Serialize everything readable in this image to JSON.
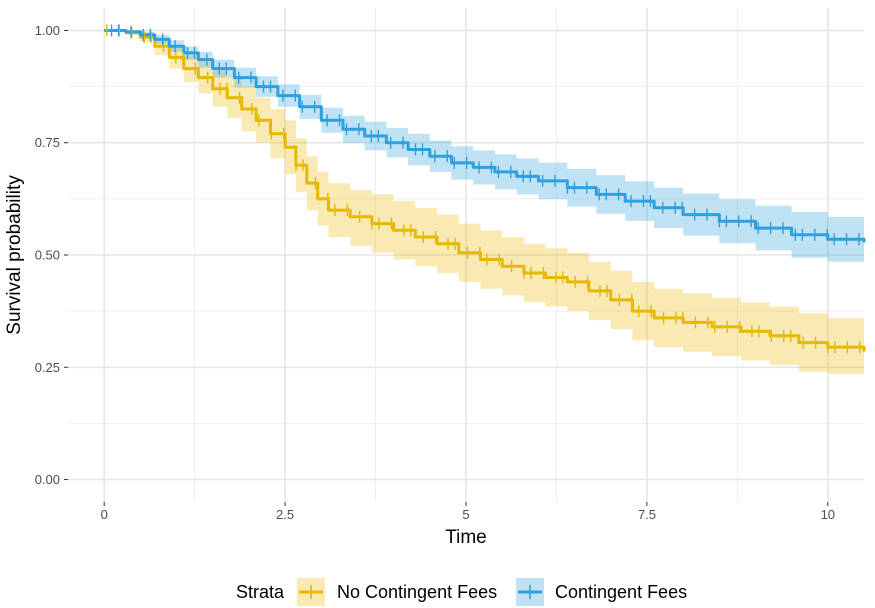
{
  "chart_data": {
    "type": "line",
    "subtype": "kaplan-meier survival with confidence bands",
    "xlabel": "Time",
    "ylabel": "Survival probability",
    "xlim": [
      -0.5,
      10.5
    ],
    "ylim": [
      -0.05,
      1.05
    ],
    "x_ticks": [
      0,
      2.5,
      5,
      7.5,
      10
    ],
    "x_tick_labels": [
      "0",
      "2.5",
      "5",
      "7.5",
      "10"
    ],
    "y_ticks": [
      0,
      0.25,
      0.5,
      0.75,
      1.0
    ],
    "y_tick_labels": [
      "0.00",
      "0.25",
      "0.50",
      "0.75",
      "1.00"
    ],
    "grid": true,
    "legend_title": "Strata",
    "legend_position": "bottom",
    "series": [
      {
        "name": "No Contingent Fees",
        "color": "#E7B800",
        "points": [
          [
            0,
            1.0
          ],
          [
            0.3,
            0.995
          ],
          [
            0.5,
            0.985
          ],
          [
            0.7,
            0.965
          ],
          [
            0.9,
            0.94
          ],
          [
            1.1,
            0.915
          ],
          [
            1.3,
            0.895
          ],
          [
            1.5,
            0.87
          ],
          [
            1.7,
            0.85
          ],
          [
            1.9,
            0.825
          ],
          [
            2.1,
            0.8
          ],
          [
            2.3,
            0.77
          ],
          [
            2.5,
            0.74
          ],
          [
            2.65,
            0.7
          ],
          [
            2.8,
            0.66
          ],
          [
            2.95,
            0.625
          ],
          [
            3.1,
            0.6
          ],
          [
            3.4,
            0.585
          ],
          [
            3.7,
            0.57
          ],
          [
            4.0,
            0.555
          ],
          [
            4.3,
            0.54
          ],
          [
            4.6,
            0.525
          ],
          [
            4.9,
            0.505
          ],
          [
            5.2,
            0.49
          ],
          [
            5.5,
            0.475
          ],
          [
            5.8,
            0.46
          ],
          [
            6.1,
            0.45
          ],
          [
            6.4,
            0.44
          ],
          [
            6.7,
            0.42
          ],
          [
            7.0,
            0.4
          ],
          [
            7.3,
            0.375
          ],
          [
            7.6,
            0.36
          ],
          [
            8.0,
            0.35
          ],
          [
            8.4,
            0.34
          ],
          [
            8.8,
            0.33
          ],
          [
            9.2,
            0.32
          ],
          [
            9.6,
            0.305
          ],
          [
            10.0,
            0.295
          ],
          [
            10.5,
            0.285
          ]
        ],
        "lower": [
          [
            0,
            1.0
          ],
          [
            0.3,
            0.99
          ],
          [
            0.5,
            0.975
          ],
          [
            0.7,
            0.945
          ],
          [
            0.9,
            0.915
          ],
          [
            1.1,
            0.885
          ],
          [
            1.3,
            0.86
          ],
          [
            1.5,
            0.83
          ],
          [
            1.7,
            0.805
          ],
          [
            1.9,
            0.775
          ],
          [
            2.1,
            0.75
          ],
          [
            2.3,
            0.715
          ],
          [
            2.5,
            0.68
          ],
          [
            2.65,
            0.64
          ],
          [
            2.8,
            0.6
          ],
          [
            2.95,
            0.565
          ],
          [
            3.1,
            0.54
          ],
          [
            3.4,
            0.52
          ],
          [
            3.7,
            0.505
          ],
          [
            4.0,
            0.49
          ],
          [
            4.3,
            0.475
          ],
          [
            4.6,
            0.46
          ],
          [
            4.9,
            0.44
          ],
          [
            5.2,
            0.425
          ],
          [
            5.5,
            0.41
          ],
          [
            5.8,
            0.395
          ],
          [
            6.1,
            0.385
          ],
          [
            6.4,
            0.375
          ],
          [
            6.7,
            0.355
          ],
          [
            7.0,
            0.335
          ],
          [
            7.3,
            0.31
          ],
          [
            7.6,
            0.295
          ],
          [
            8.0,
            0.285
          ],
          [
            8.4,
            0.275
          ],
          [
            8.8,
            0.265
          ],
          [
            9.2,
            0.255
          ],
          [
            9.6,
            0.24
          ],
          [
            10.0,
            0.235
          ],
          [
            10.5,
            0.23
          ]
        ],
        "upper": [
          [
            0,
            1.0
          ],
          [
            0.3,
            1.0
          ],
          [
            0.5,
            0.995
          ],
          [
            0.7,
            0.985
          ],
          [
            0.9,
            0.965
          ],
          [
            1.1,
            0.945
          ],
          [
            1.3,
            0.93
          ],
          [
            1.5,
            0.91
          ],
          [
            1.7,
            0.895
          ],
          [
            1.9,
            0.875
          ],
          [
            2.1,
            0.85
          ],
          [
            2.3,
            0.825
          ],
          [
            2.5,
            0.8
          ],
          [
            2.65,
            0.76
          ],
          [
            2.8,
            0.72
          ],
          [
            2.95,
            0.685
          ],
          [
            3.1,
            0.66
          ],
          [
            3.4,
            0.645
          ],
          [
            3.7,
            0.635
          ],
          [
            4.0,
            0.62
          ],
          [
            4.3,
            0.605
          ],
          [
            4.6,
            0.59
          ],
          [
            4.9,
            0.57
          ],
          [
            5.2,
            0.555
          ],
          [
            5.5,
            0.54
          ],
          [
            5.8,
            0.525
          ],
          [
            6.1,
            0.515
          ],
          [
            6.4,
            0.505
          ],
          [
            6.7,
            0.485
          ],
          [
            7.0,
            0.465
          ],
          [
            7.3,
            0.44
          ],
          [
            7.6,
            0.425
          ],
          [
            8.0,
            0.415
          ],
          [
            8.4,
            0.405
          ],
          [
            8.8,
            0.395
          ],
          [
            9.2,
            0.385
          ],
          [
            9.6,
            0.37
          ],
          [
            10.0,
            0.36
          ],
          [
            10.5,
            0.345
          ]
        ]
      },
      {
        "name": "Contingent Fees",
        "color": "#2E9FDF",
        "points": [
          [
            0,
            1.0
          ],
          [
            0.3,
            0.997
          ],
          [
            0.5,
            0.99
          ],
          [
            0.7,
            0.98
          ],
          [
            0.9,
            0.965
          ],
          [
            1.1,
            0.95
          ],
          [
            1.3,
            0.935
          ],
          [
            1.5,
            0.915
          ],
          [
            1.8,
            0.895
          ],
          [
            2.1,
            0.875
          ],
          [
            2.4,
            0.855
          ],
          [
            2.7,
            0.83
          ],
          [
            3.0,
            0.8
          ],
          [
            3.3,
            0.78
          ],
          [
            3.6,
            0.765
          ],
          [
            3.9,
            0.75
          ],
          [
            4.2,
            0.735
          ],
          [
            4.5,
            0.72
          ],
          [
            4.8,
            0.705
          ],
          [
            5.1,
            0.695
          ],
          [
            5.4,
            0.685
          ],
          [
            5.7,
            0.675
          ],
          [
            6.0,
            0.665
          ],
          [
            6.4,
            0.65
          ],
          [
            6.8,
            0.635
          ],
          [
            7.2,
            0.62
          ],
          [
            7.6,
            0.605
          ],
          [
            8.0,
            0.59
          ],
          [
            8.5,
            0.575
          ],
          [
            9.0,
            0.56
          ],
          [
            9.5,
            0.545
          ],
          [
            10.0,
            0.535
          ],
          [
            10.5,
            0.528
          ]
        ],
        "lower": [
          [
            0,
            1.0
          ],
          [
            0.3,
            0.993
          ],
          [
            0.5,
            0.983
          ],
          [
            0.7,
            0.97
          ],
          [
            0.9,
            0.952
          ],
          [
            1.1,
            0.935
          ],
          [
            1.3,
            0.917
          ],
          [
            1.5,
            0.895
          ],
          [
            1.8,
            0.873
          ],
          [
            2.1,
            0.852
          ],
          [
            2.4,
            0.83
          ],
          [
            2.7,
            0.803
          ],
          [
            3.0,
            0.772
          ],
          [
            3.3,
            0.75
          ],
          [
            3.6,
            0.733
          ],
          [
            3.9,
            0.717
          ],
          [
            4.2,
            0.7
          ],
          [
            4.5,
            0.685
          ],
          [
            4.8,
            0.668
          ],
          [
            5.1,
            0.657
          ],
          [
            5.4,
            0.646
          ],
          [
            5.7,
            0.635
          ],
          [
            6.0,
            0.624
          ],
          [
            6.4,
            0.608
          ],
          [
            6.8,
            0.592
          ],
          [
            7.2,
            0.576
          ],
          [
            7.6,
            0.56
          ],
          [
            8.0,
            0.543
          ],
          [
            8.5,
            0.526
          ],
          [
            9.0,
            0.51
          ],
          [
            9.5,
            0.494
          ],
          [
            10.0,
            0.485
          ],
          [
            10.5,
            0.478
          ]
        ],
        "upper": [
          [
            0,
            1.0
          ],
          [
            0.3,
            1.0
          ],
          [
            0.5,
            0.997
          ],
          [
            0.7,
            0.99
          ],
          [
            0.9,
            0.978
          ],
          [
            1.1,
            0.965
          ],
          [
            1.3,
            0.953
          ],
          [
            1.5,
            0.935
          ],
          [
            1.8,
            0.917
          ],
          [
            2.1,
            0.898
          ],
          [
            2.4,
            0.88
          ],
          [
            2.7,
            0.857
          ],
          [
            3.0,
            0.828
          ],
          [
            3.3,
            0.81
          ],
          [
            3.6,
            0.797
          ],
          [
            3.9,
            0.783
          ],
          [
            4.2,
            0.77
          ],
          [
            4.5,
            0.755
          ],
          [
            4.8,
            0.742
          ],
          [
            5.1,
            0.733
          ],
          [
            5.4,
            0.724
          ],
          [
            5.7,
            0.715
          ],
          [
            6.0,
            0.706
          ],
          [
            6.4,
            0.692
          ],
          [
            6.8,
            0.678
          ],
          [
            7.2,
            0.664
          ],
          [
            7.6,
            0.65
          ],
          [
            8.0,
            0.637
          ],
          [
            8.5,
            0.624
          ],
          [
            9.0,
            0.61
          ],
          [
            9.5,
            0.596
          ],
          [
            10.0,
            0.585
          ],
          [
            10.5,
            0.578
          ]
        ]
      }
    ]
  }
}
